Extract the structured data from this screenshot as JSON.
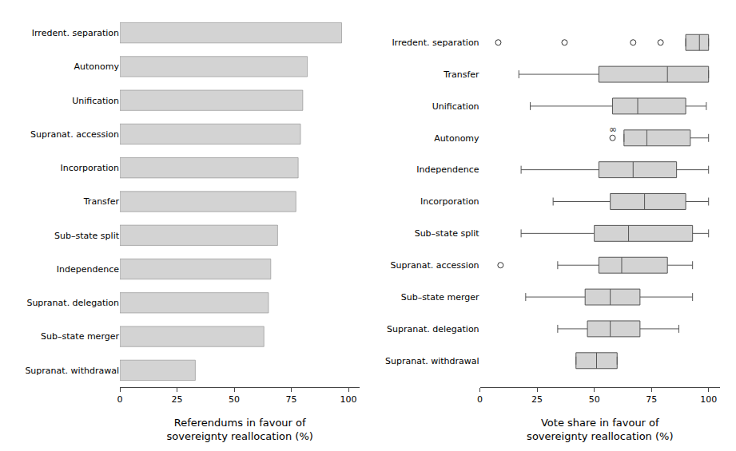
{
  "chart_data": [
    {
      "type": "bar",
      "orientation": "horizontal",
      "categories": [
        "Irredent. separation",
        "Autonomy",
        "Unification",
        "Supranat. accession",
        "Incorporation",
        "Transfer",
        "Sub–state split",
        "Independence",
        "Supranat. delegation",
        "Sub–state merger",
        "Supranat. withdrawal"
      ],
      "values": [
        97,
        82,
        80,
        79,
        78,
        77,
        69,
        66,
        65,
        63,
        33
      ],
      "color": "#d3d3d3",
      "xlabel": "Referendums in favour of\nsovereignty reallocation (%)",
      "xlim": [
        0,
        105
      ],
      "xticks": [
        0,
        25,
        50,
        75,
        100
      ],
      "grid": false
    },
    {
      "type": "box",
      "orientation": "horizontal",
      "categories": [
        "Irredent. separation",
        "Transfer",
        "Unification",
        "Autonomy",
        "Independence",
        "Incorporation",
        "Sub–state split",
        "Supranat. accession",
        "Sub–state merger",
        "Supranat. delegation",
        "Supranat. withdrawal"
      ],
      "boxes": [
        {
          "q1": 90,
          "median": 96,
          "q3": 100,
          "whislo": 90,
          "whishi": 100,
          "fliers": [
            8,
            37,
            67,
            79
          ]
        },
        {
          "q1": 52,
          "median": 82,
          "q3": 100,
          "whislo": 17,
          "whishi": 100,
          "fliers": []
        },
        {
          "q1": 58,
          "median": 69,
          "q3": 90,
          "whislo": 22,
          "whishi": 99,
          "fliers": []
        },
        {
          "q1": 63,
          "median": 73,
          "q3": 92,
          "whislo": 63,
          "whishi": 100,
          "fliers": [],
          "inf_outlier": {
            "x": 58,
            "label": "∞"
          }
        },
        {
          "q1": 52,
          "median": 67,
          "q3": 86,
          "whislo": 18,
          "whishi": 100,
          "fliers": []
        },
        {
          "q1": 57,
          "median": 72,
          "q3": 90,
          "whislo": 32,
          "whishi": 100,
          "fliers": []
        },
        {
          "q1": 50,
          "median": 65,
          "q3": 93,
          "whislo": 18,
          "whishi": 100,
          "fliers": []
        },
        {
          "q1": 52,
          "median": 62,
          "q3": 82,
          "whislo": 34,
          "whishi": 93,
          "fliers": [
            9
          ]
        },
        {
          "q1": 46,
          "median": 57,
          "q3": 70,
          "whislo": 20,
          "whishi": 93,
          "fliers": []
        },
        {
          "q1": 47,
          "median": 57,
          "q3": 70,
          "whislo": 34,
          "whishi": 87,
          "fliers": []
        },
        {
          "q1": 42,
          "median": 51,
          "q3": 60,
          "whislo": 42,
          "whishi": 60,
          "fliers": []
        }
      ],
      "color": "#d3d3d3",
      "xlabel": "Vote share in favour of\nsovereignty reallocation (%)",
      "xlim": [
        0,
        105
      ],
      "xticks": [
        0,
        25,
        50,
        75,
        100
      ],
      "grid": false
    }
  ]
}
